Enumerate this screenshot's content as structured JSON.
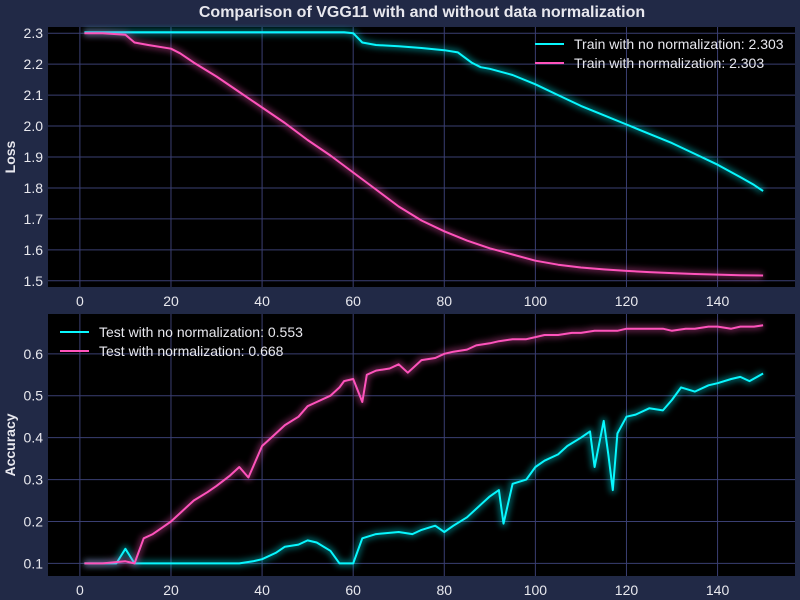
{
  "title": "Comparison of VGG11 with and without data normalization",
  "colors": {
    "no_norm": "#08F7FE",
    "norm": "#FE53BB",
    "background": "#212946",
    "plot_bg": "#000000",
    "grid": "#3a3f72",
    "text": "#e8e8ee"
  },
  "chart_data": [
    {
      "type": "line",
      "ylabel": "Loss",
      "xlabel": "",
      "xlim": [
        -7,
        157
      ],
      "ylim": [
        1.48,
        2.32
      ],
      "xticks": [
        0,
        20,
        40,
        60,
        80,
        100,
        120,
        140
      ],
      "yticks": [
        1.5,
        1.6,
        1.7,
        1.8,
        1.9,
        2.0,
        2.1,
        2.2,
        2.3
      ],
      "grid": true,
      "legend_position": "top-right",
      "series": [
        {
          "name": "Train with no normalization: 2.303",
          "color_key": "no_norm",
          "points": [
            [
              1,
              2.303
            ],
            [
              20,
              2.303
            ],
            [
              40,
              2.303
            ],
            [
              58,
              2.303
            ],
            [
              60,
              2.3
            ],
            [
              62,
              2.27
            ],
            [
              65,
              2.262
            ],
            [
              70,
              2.258
            ],
            [
              75,
              2.252
            ],
            [
              80,
              2.245
            ],
            [
              83,
              2.238
            ],
            [
              86,
              2.205
            ],
            [
              88,
              2.19
            ],
            [
              90,
              2.185
            ],
            [
              95,
              2.165
            ],
            [
              100,
              2.135
            ],
            [
              105,
              2.1
            ],
            [
              110,
              2.065
            ],
            [
              115,
              2.035
            ],
            [
              120,
              2.005
            ],
            [
              125,
              1.975
            ],
            [
              130,
              1.945
            ],
            [
              135,
              1.91
            ],
            [
              140,
              1.875
            ],
            [
              145,
              1.835
            ],
            [
              148,
              1.81
            ],
            [
              150,
              1.79
            ]
          ]
        },
        {
          "name": "Train with normalization: 2.303",
          "color_key": "norm",
          "points": [
            [
              1,
              2.3
            ],
            [
              5,
              2.3
            ],
            [
              10,
              2.295
            ],
            [
              12,
              2.27
            ],
            [
              15,
              2.262
            ],
            [
              20,
              2.25
            ],
            [
              22,
              2.235
            ],
            [
              25,
              2.205
            ],
            [
              30,
              2.16
            ],
            [
              35,
              2.11
            ],
            [
              40,
              2.06
            ],
            [
              45,
              2.01
            ],
            [
              50,
              1.955
            ],
            [
              55,
              1.905
            ],
            [
              60,
              1.85
            ],
            [
              65,
              1.795
            ],
            [
              70,
              1.74
            ],
            [
              75,
              1.695
            ],
            [
              80,
              1.66
            ],
            [
              85,
              1.63
            ],
            [
              90,
              1.605
            ],
            [
              95,
              1.585
            ],
            [
              100,
              1.565
            ],
            [
              105,
              1.552
            ],
            [
              110,
              1.543
            ],
            [
              115,
              1.537
            ],
            [
              120,
              1.532
            ],
            [
              125,
              1.528
            ],
            [
              130,
              1.525
            ],
            [
              135,
              1.522
            ],
            [
              140,
              1.52
            ],
            [
              145,
              1.518
            ],
            [
              150,
              1.517
            ]
          ]
        }
      ]
    },
    {
      "type": "line",
      "ylabel": "Accuracy",
      "xlabel": "",
      "xlim": [
        -7,
        157
      ],
      "ylim": [
        0.07,
        0.695
      ],
      "xticks": [
        0,
        20,
        40,
        60,
        80,
        100,
        120,
        140
      ],
      "yticks": [
        0.1,
        0.2,
        0.3,
        0.4,
        0.5,
        0.6
      ],
      "grid": true,
      "legend_position": "top-left",
      "series": [
        {
          "name": "Test with no normalization: 0.553",
          "color_key": "no_norm",
          "points": [
            [
              1,
              0.1
            ],
            [
              5,
              0.1
            ],
            [
              8,
              0.1
            ],
            [
              10,
              0.135
            ],
            [
              12,
              0.1
            ],
            [
              15,
              0.1
            ],
            [
              20,
              0.1
            ],
            [
              25,
              0.1
            ],
            [
              30,
              0.1
            ],
            [
              35,
              0.1
            ],
            [
              38,
              0.105
            ],
            [
              40,
              0.11
            ],
            [
              43,
              0.125
            ],
            [
              45,
              0.14
            ],
            [
              48,
              0.145
            ],
            [
              50,
              0.155
            ],
            [
              52,
              0.15
            ],
            [
              55,
              0.13
            ],
            [
              57,
              0.1
            ],
            [
              60,
              0.1
            ],
            [
              62,
              0.16
            ],
            [
              65,
              0.17
            ],
            [
              70,
              0.175
            ],
            [
              73,
              0.17
            ],
            [
              75,
              0.18
            ],
            [
              78,
              0.19
            ],
            [
              80,
              0.175
            ],
            [
              82,
              0.19
            ],
            [
              85,
              0.21
            ],
            [
              88,
              0.24
            ],
            [
              90,
              0.26
            ],
            [
              92,
              0.275
            ],
            [
              93,
              0.195
            ],
            [
              95,
              0.29
            ],
            [
              98,
              0.3
            ],
            [
              100,
              0.33
            ],
            [
              102,
              0.345
            ],
            [
              105,
              0.36
            ],
            [
              107,
              0.38
            ],
            [
              110,
              0.4
            ],
            [
              112,
              0.415
            ],
            [
              113,
              0.33
            ],
            [
              115,
              0.44
            ],
            [
              116,
              0.36
            ],
            [
              117,
              0.275
            ],
            [
              118,
              0.41
            ],
            [
              120,
              0.45
            ],
            [
              122,
              0.455
            ],
            [
              125,
              0.47
            ],
            [
              128,
              0.465
            ],
            [
              130,
              0.49
            ],
            [
              132,
              0.52
            ],
            [
              135,
              0.51
            ],
            [
              138,
              0.525
            ],
            [
              140,
              0.53
            ],
            [
              143,
              0.54
            ],
            [
              145,
              0.545
            ],
            [
              147,
              0.535
            ],
            [
              150,
              0.553
            ]
          ]
        },
        {
          "name": "Test with normalization: 0.668",
          "color_key": "norm",
          "points": [
            [
              1,
              0.1
            ],
            [
              5,
              0.1
            ],
            [
              10,
              0.105
            ],
            [
              12,
              0.1
            ],
            [
              14,
              0.16
            ],
            [
              16,
              0.17
            ],
            [
              18,
              0.185
            ],
            [
              20,
              0.2
            ],
            [
              22,
              0.22
            ],
            [
              25,
              0.25
            ],
            [
              28,
              0.27
            ],
            [
              30,
              0.285
            ],
            [
              33,
              0.31
            ],
            [
              35,
              0.33
            ],
            [
              37,
              0.305
            ],
            [
              40,
              0.38
            ],
            [
              42,
              0.4
            ],
            [
              45,
              0.43
            ],
            [
              48,
              0.45
            ],
            [
              50,
              0.475
            ],
            [
              52,
              0.485
            ],
            [
              55,
              0.5
            ],
            [
              57,
              0.52
            ],
            [
              58,
              0.535
            ],
            [
              60,
              0.54
            ],
            [
              62,
              0.485
            ],
            [
              63,
              0.55
            ],
            [
              65,
              0.56
            ],
            [
              68,
              0.565
            ],
            [
              70,
              0.575
            ],
            [
              72,
              0.555
            ],
            [
              75,
              0.585
            ],
            [
              78,
              0.59
            ],
            [
              80,
              0.6
            ],
            [
              82,
              0.605
            ],
            [
              85,
              0.61
            ],
            [
              87,
              0.62
            ],
            [
              90,
              0.625
            ],
            [
              92,
              0.63
            ],
            [
              95,
              0.635
            ],
            [
              98,
              0.635
            ],
            [
              100,
              0.64
            ],
            [
              102,
              0.645
            ],
            [
              105,
              0.645
            ],
            [
              108,
              0.65
            ],
            [
              110,
              0.65
            ],
            [
              113,
              0.655
            ],
            [
              115,
              0.655
            ],
            [
              118,
              0.655
            ],
            [
              120,
              0.66
            ],
            [
              123,
              0.66
            ],
            [
              125,
              0.66
            ],
            [
              128,
              0.66
            ],
            [
              130,
              0.655
            ],
            [
              133,
              0.66
            ],
            [
              135,
              0.66
            ],
            [
              138,
              0.665
            ],
            [
              140,
              0.665
            ],
            [
              143,
              0.66
            ],
            [
              145,
              0.665
            ],
            [
              148,
              0.665
            ],
            [
              150,
              0.668
            ]
          ]
        }
      ]
    }
  ]
}
